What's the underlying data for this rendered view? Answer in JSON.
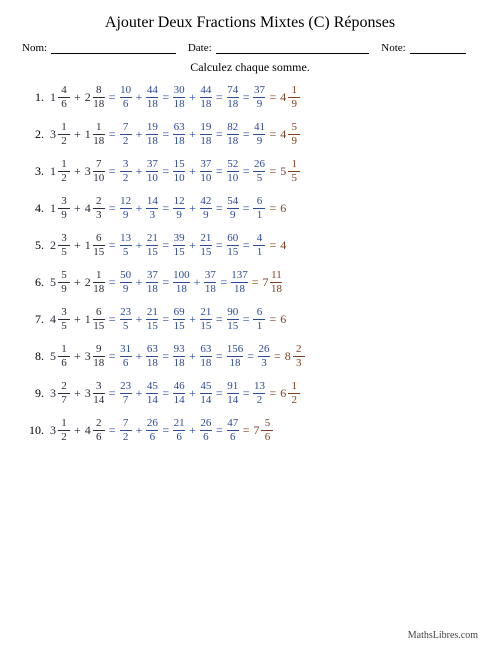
{
  "title": "Ajouter Deux Fractions Mixtes (C) Réponses",
  "labels": {
    "nom": "Nom:",
    "date": "Date:",
    "note": "Note:"
  },
  "instructions": "Calculez chaque somme.",
  "footer": "MathsLibres.com",
  "colors": {
    "problem": "#2b2b3a",
    "step": "#2a4a9a",
    "final": "#804020"
  },
  "problems": [
    {
      "n": "1.",
      "a": {
        "w": 1,
        "n": 4,
        "d": 6
      },
      "b": {
        "w": 2,
        "n": 8,
        "d": 18
      },
      "steps": [
        {
          "t": "sum",
          "a": {
            "n": 10,
            "d": 6
          },
          "b": {
            "n": 44,
            "d": 18
          }
        },
        {
          "t": "sum",
          "a": {
            "n": 30,
            "d": 18
          },
          "b": {
            "n": 44,
            "d": 18
          }
        },
        {
          "t": "frac",
          "n": 74,
          "d": 18
        },
        {
          "t": "frac",
          "n": 37,
          "d": 9
        }
      ],
      "final": {
        "t": "mixed",
        "w": 4,
        "n": 1,
        "d": 9
      }
    },
    {
      "n": "2.",
      "a": {
        "w": 3,
        "n": 1,
        "d": 2
      },
      "b": {
        "w": 1,
        "n": 1,
        "d": 18
      },
      "steps": [
        {
          "t": "sum",
          "a": {
            "n": 7,
            "d": 2
          },
          "b": {
            "n": 19,
            "d": 18
          }
        },
        {
          "t": "sum",
          "a": {
            "n": 63,
            "d": 18
          },
          "b": {
            "n": 19,
            "d": 18
          }
        },
        {
          "t": "frac",
          "n": 82,
          "d": 18
        },
        {
          "t": "frac",
          "n": 41,
          "d": 9
        }
      ],
      "final": {
        "t": "mixed",
        "w": 4,
        "n": 5,
        "d": 9
      }
    },
    {
      "n": "3.",
      "a": {
        "w": 1,
        "n": 1,
        "d": 2
      },
      "b": {
        "w": 3,
        "n": 7,
        "d": 10
      },
      "steps": [
        {
          "t": "sum",
          "a": {
            "n": 3,
            "d": 2
          },
          "b": {
            "n": 37,
            "d": 10
          }
        },
        {
          "t": "sum",
          "a": {
            "n": 15,
            "d": 10
          },
          "b": {
            "n": 37,
            "d": 10
          }
        },
        {
          "t": "frac",
          "n": 52,
          "d": 10
        },
        {
          "t": "frac",
          "n": 26,
          "d": 5
        }
      ],
      "final": {
        "t": "mixed",
        "w": 5,
        "n": 1,
        "d": 5
      }
    },
    {
      "n": "4.",
      "a": {
        "w": 1,
        "n": 3,
        "d": 9
      },
      "b": {
        "w": 4,
        "n": 2,
        "d": 3
      },
      "steps": [
        {
          "t": "sum",
          "a": {
            "n": 12,
            "d": 9
          },
          "b": {
            "n": 14,
            "d": 3
          }
        },
        {
          "t": "sum",
          "a": {
            "n": 12,
            "d": 9
          },
          "b": {
            "n": 42,
            "d": 9
          }
        },
        {
          "t": "frac",
          "n": 54,
          "d": 9
        },
        {
          "t": "frac",
          "n": 6,
          "d": 1
        }
      ],
      "final": {
        "t": "int",
        "v": 6
      }
    },
    {
      "n": "5.",
      "a": {
        "w": 2,
        "n": 3,
        "d": 5
      },
      "b": {
        "w": 1,
        "n": 6,
        "d": 15
      },
      "steps": [
        {
          "t": "sum",
          "a": {
            "n": 13,
            "d": 5
          },
          "b": {
            "n": 21,
            "d": 15
          }
        },
        {
          "t": "sum",
          "a": {
            "n": 39,
            "d": 15
          },
          "b": {
            "n": 21,
            "d": 15
          }
        },
        {
          "t": "frac",
          "n": 60,
          "d": 15
        },
        {
          "t": "frac",
          "n": 4,
          "d": 1
        }
      ],
      "final": {
        "t": "int",
        "v": 4
      }
    },
    {
      "n": "6.",
      "a": {
        "w": 5,
        "n": 5,
        "d": 9
      },
      "b": {
        "w": 2,
        "n": 1,
        "d": 18
      },
      "steps": [
        {
          "t": "sum",
          "a": {
            "n": 50,
            "d": 9
          },
          "b": {
            "n": 37,
            "d": 18
          }
        },
        {
          "t": "sum",
          "a": {
            "n": 100,
            "d": 18
          },
          "b": {
            "n": 37,
            "d": 18
          }
        },
        {
          "t": "frac",
          "n": 137,
          "d": 18
        }
      ],
      "final": {
        "t": "mixed",
        "w": 7,
        "n": 11,
        "d": 18
      }
    },
    {
      "n": "7.",
      "a": {
        "w": 4,
        "n": 3,
        "d": 5
      },
      "b": {
        "w": 1,
        "n": 6,
        "d": 15
      },
      "steps": [
        {
          "t": "sum",
          "a": {
            "n": 23,
            "d": 5
          },
          "b": {
            "n": 21,
            "d": 15
          }
        },
        {
          "t": "sum",
          "a": {
            "n": 69,
            "d": 15
          },
          "b": {
            "n": 21,
            "d": 15
          }
        },
        {
          "t": "frac",
          "n": 90,
          "d": 15
        },
        {
          "t": "frac",
          "n": 6,
          "d": 1
        }
      ],
      "final": {
        "t": "int",
        "v": 6
      }
    },
    {
      "n": "8.",
      "a": {
        "w": 5,
        "n": 1,
        "d": 6
      },
      "b": {
        "w": 3,
        "n": 9,
        "d": 18
      },
      "steps": [
        {
          "t": "sum",
          "a": {
            "n": 31,
            "d": 6
          },
          "b": {
            "n": 63,
            "d": 18
          }
        },
        {
          "t": "sum",
          "a": {
            "n": 93,
            "d": 18
          },
          "b": {
            "n": 63,
            "d": 18
          }
        },
        {
          "t": "frac",
          "n": 156,
          "d": 18
        },
        {
          "t": "frac",
          "n": 26,
          "d": 3
        }
      ],
      "final": {
        "t": "mixed",
        "w": 8,
        "n": 2,
        "d": 3
      }
    },
    {
      "n": "9.",
      "a": {
        "w": 3,
        "n": 2,
        "d": 7
      },
      "b": {
        "w": 3,
        "n": 3,
        "d": 14
      },
      "steps": [
        {
          "t": "sum",
          "a": {
            "n": 23,
            "d": 7
          },
          "b": {
            "n": 45,
            "d": 14
          }
        },
        {
          "t": "sum",
          "a": {
            "n": 46,
            "d": 14
          },
          "b": {
            "n": 45,
            "d": 14
          }
        },
        {
          "t": "frac",
          "n": 91,
          "d": 14
        },
        {
          "t": "frac",
          "n": 13,
          "d": 2
        }
      ],
      "final": {
        "t": "mixed",
        "w": 6,
        "n": 1,
        "d": 2
      }
    },
    {
      "n": "10.",
      "a": {
        "w": 3,
        "n": 1,
        "d": 2
      },
      "b": {
        "w": 4,
        "n": 2,
        "d": 6
      },
      "steps": [
        {
          "t": "sum",
          "a": {
            "n": 7,
            "d": 2
          },
          "b": {
            "n": 26,
            "d": 6
          }
        },
        {
          "t": "sum",
          "a": {
            "n": 21,
            "d": 6
          },
          "b": {
            "n": 26,
            "d": 6
          }
        },
        {
          "t": "frac",
          "n": 47,
          "d": 6
        }
      ],
      "final": {
        "t": "mixed",
        "w": 7,
        "n": 5,
        "d": 6
      }
    }
  ]
}
